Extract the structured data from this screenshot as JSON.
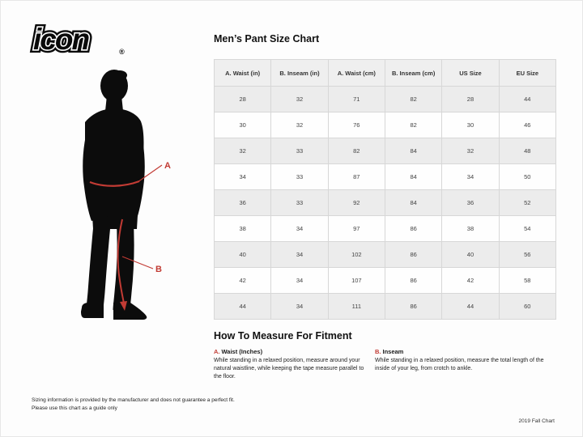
{
  "brand": {
    "logo_text": "icon",
    "registered_mark": "®"
  },
  "title": "Men’s Pant Size Chart",
  "figure": {
    "marker_a": "A",
    "marker_b": "B",
    "annotation_color": "#c23b34",
    "silhouette_color": "#0c0c0c"
  },
  "table": {
    "headers": [
      "A. Waist (in)",
      "B. Inseam (in)",
      "A. Waist (cm)",
      "B. Inseam (cm)",
      "US Size",
      "EU Size"
    ],
    "rows": [
      [
        "28",
        "32",
        "71",
        "82",
        "28",
        "44"
      ],
      [
        "30",
        "32",
        "76",
        "82",
        "30",
        "46"
      ],
      [
        "32",
        "33",
        "82",
        "84",
        "32",
        "48"
      ],
      [
        "34",
        "33",
        "87",
        "84",
        "34",
        "50"
      ],
      [
        "36",
        "33",
        "92",
        "84",
        "36",
        "52"
      ],
      [
        "38",
        "34",
        "97",
        "86",
        "38",
        "54"
      ],
      [
        "40",
        "34",
        "102",
        "86",
        "40",
        "56"
      ],
      [
        "42",
        "34",
        "107",
        "86",
        "42",
        "58"
      ],
      [
        "44",
        "34",
        "111",
        "86",
        "44",
        "60"
      ]
    ]
  },
  "chart_data": {
    "type": "table",
    "title": "Men’s Pant Size Chart",
    "columns": [
      "A. Waist (in)",
      "B. Inseam (in)",
      "A. Waist (cm)",
      "B. Inseam (cm)",
      "US Size",
      "EU Size"
    ],
    "rows": [
      [
        28,
        32,
        71,
        82,
        28,
        44
      ],
      [
        30,
        32,
        76,
        82,
        30,
        46
      ],
      [
        32,
        33,
        82,
        84,
        32,
        48
      ],
      [
        34,
        33,
        87,
        84,
        34,
        50
      ],
      [
        36,
        33,
        92,
        84,
        36,
        52
      ],
      [
        38,
        34,
        97,
        86,
        38,
        54
      ],
      [
        40,
        34,
        102,
        86,
        40,
        56
      ],
      [
        42,
        34,
        107,
        86,
        42,
        58
      ],
      [
        44,
        34,
        111,
        86,
        44,
        60
      ]
    ]
  },
  "measure_section": {
    "heading": "How To Measure For Fitment",
    "items": [
      {
        "marker": "A.",
        "label": "Waist (Inches)",
        "text": "While standing in a relaxed position, measure around your natural waistline, while keeping the tape measure parallel to the floor."
      },
      {
        "marker": "B.",
        "label": "Inseam",
        "text": "While standing in a relaxed position, measure the total length of the inside of your leg, from crotch to ankle."
      }
    ]
  },
  "footer": {
    "disclaimer_line1": "Sizing information is provided by the manufacturer and does not guarantee a perfect fit.",
    "disclaimer_line2": "Please use this chart as a guide only",
    "chart_version": "2019 Fall Chart"
  }
}
